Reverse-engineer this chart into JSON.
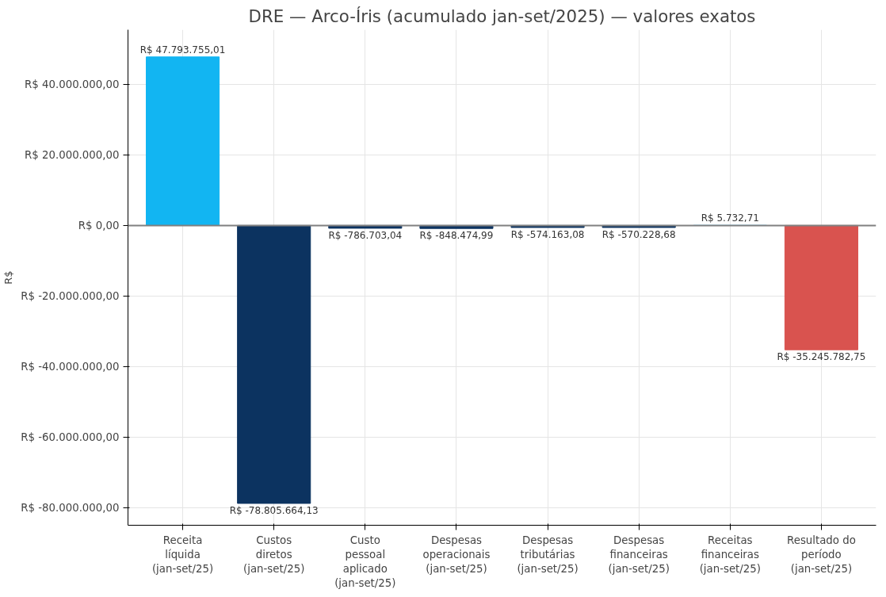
{
  "chart_data": {
    "type": "bar",
    "title": "DRE — Arco-Íris (acumulado jan-set/2025) — valores exatos",
    "ylabel": "R$",
    "categories": [
      "Receita líquida (jan-set/25)",
      "Custos diretos (jan-set/25)",
      "Custo pessoal aplicado (jan-set/25)",
      "Despesas operacionais (jan-set/25)",
      "Despesas tributárias (jan-set/25)",
      "Despesas financeiras (jan-set/25)",
      "Receitas financeiras (jan-set/25)",
      "Resultado do período (jan-set/25)"
    ],
    "values": [
      47793755.01,
      -78805664.13,
      -786703.04,
      -848474.99,
      -574163.08,
      -570228.68,
      5732.71,
      -35245782.75
    ],
    "colors": [
      "#12b5f2",
      "#0c3360",
      "#0c3360",
      "#0c3360",
      "#0c3360",
      "#0c3360",
      "#12b5f2",
      "#d9534f"
    ],
    "value_labels": [
      "R$ 47.793.755,01",
      "R$ -78.805.664,13",
      "R$ -786.703,04",
      "R$ -848.474,99",
      "R$ -574.163,08",
      "R$ -570.228,68",
      "R$ 5.732,71",
      "R$ -35.245.782,75"
    ],
    "ylim": [
      -85000000,
      55500000
    ],
    "yticks": [
      {
        "value": -80000000,
        "label": "R$ -80.000.000,00"
      },
      {
        "value": -60000000,
        "label": "R$ -60.000.000,00"
      },
      {
        "value": -40000000,
        "label": "R$ -40.000.000,00"
      },
      {
        "value": -20000000,
        "label": "R$ -20.000.000,00"
      },
      {
        "value": 0,
        "label": "R$ 0,00"
      },
      {
        "value": 20000000,
        "label": "R$ 20.000.000,00"
      },
      {
        "value": 40000000,
        "label": "R$ 40.000.000,00"
      }
    ],
    "ref_lines": [
      {
        "axis": "y",
        "value": 0,
        "color": "#808080"
      }
    ],
    "grid": true
  }
}
